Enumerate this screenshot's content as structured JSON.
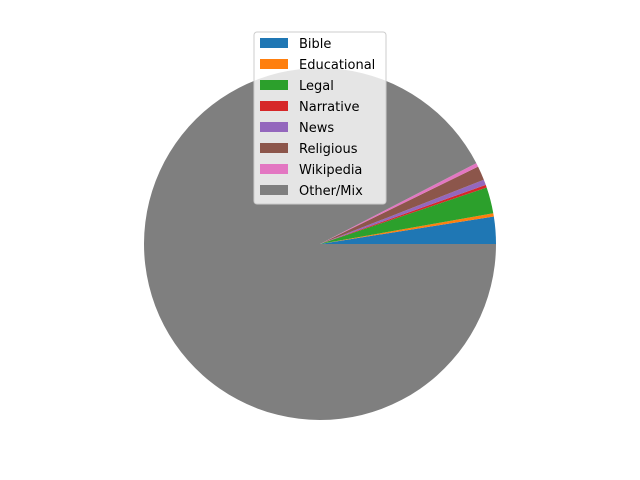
{
  "chart_data": {
    "type": "pie",
    "title": "",
    "legend_position": "upper-center",
    "start_angle_deg": 0,
    "direction": "counterclockwise",
    "slices": [
      {
        "label": "Bible",
        "value": 2.5,
        "color": "#1f77b4"
      },
      {
        "label": "Educational",
        "value": 0.3,
        "color": "#ff7f0e"
      },
      {
        "label": "Legal",
        "value": 2.4,
        "color": "#2ca02c"
      },
      {
        "label": "Narrative",
        "value": 0.25,
        "color": "#d62728"
      },
      {
        "label": "News",
        "value": 0.5,
        "color": "#9467bd"
      },
      {
        "label": "Religious",
        "value": 1.3,
        "color": "#8c564b"
      },
      {
        "label": "Wikipedia",
        "value": 0.35,
        "color": "#e377c2"
      },
      {
        "label": "Other/Mix",
        "value": 92.4,
        "color": "#7f7f7f"
      }
    ]
  }
}
